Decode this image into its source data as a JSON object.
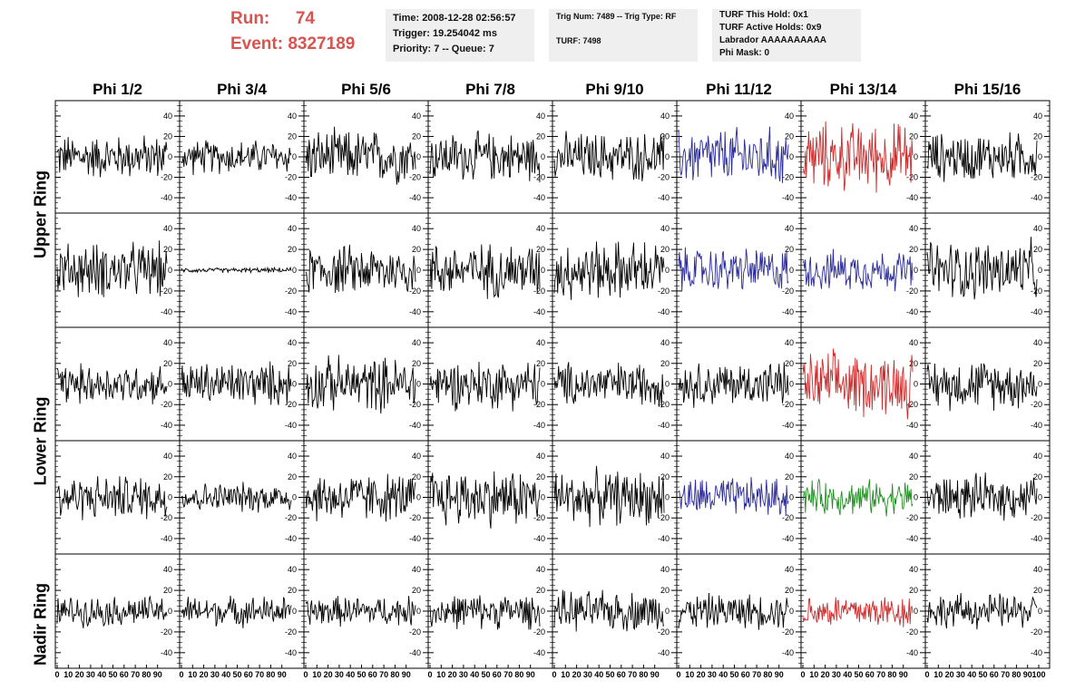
{
  "header": {
    "run_label": "Run:",
    "run_value": "74",
    "event_label": "Event:",
    "event_value": "8327189",
    "time": "Time: 2008-12-28 02:56:57",
    "trigger": "Trigger: 19.254042 ms",
    "priority": "Priority: 7 -- Queue: 7",
    "trig_num": "Trig Num: 7489 -- Trig Type: RF",
    "turf": "TURF: 7498",
    "turf_this_hold": "TURF This Hold: 0x1",
    "turf_active_holds": "TURF Active Holds: 0x9",
    "labrador": "Labrador AAAAAAAAAA",
    "phi_mask": "Phi Mask: 0"
  },
  "columns": [
    "Phi 1/2",
    "Phi 3/4",
    "Phi 5/6",
    "Phi 7/8",
    "Phi 9/10",
    "Phi 11/12",
    "Phi 13/14",
    "Phi 15/16"
  ],
  "rows": [
    "Upper Ring",
    "Lower Ring",
    "Nadir Ring"
  ],
  "y_ticks": [
    "40",
    "20",
    "0",
    "-20",
    "-40"
  ],
  "x_ticks": [
    "0",
    "10",
    "20",
    "30",
    "40",
    "50",
    "60",
    "70",
    "80",
    "90",
    "100"
  ],
  "colors": {
    "default_trace": "#000000",
    "blue_trace": "#2a2a9a",
    "red_trace": "#cc2b2b",
    "green_trace": "#1f8f1f",
    "run_text": "#d9534f",
    "info_bg": "#efefef"
  },
  "panel_colors": [
    [
      "black",
      "black",
      "black",
      "black",
      "black",
      "blue",
      "red",
      "black"
    ],
    [
      "black",
      "black",
      "black",
      "black",
      "black",
      "blue",
      "blue",
      "black"
    ],
    [
      "black",
      "black",
      "black",
      "black",
      "black",
      "black",
      "red",
      "black"
    ],
    [
      "black",
      "black",
      "black",
      "black",
      "black",
      "blue",
      "green",
      "black"
    ],
    [
      "black",
      "black",
      "black",
      "black",
      "black",
      "black",
      "red",
      "black"
    ]
  ],
  "panel_amplitudes": [
    [
      18,
      14,
      22,
      20,
      20,
      24,
      28,
      20
    ],
    [
      22,
      2,
      20,
      22,
      24,
      18,
      16,
      24
    ],
    [
      16,
      18,
      22,
      20,
      18,
      18,
      26,
      20
    ],
    [
      18,
      12,
      20,
      24,
      22,
      16,
      14,
      18
    ],
    [
      12,
      12,
      12,
      14,
      16,
      14,
      14,
      14
    ]
  ]
}
